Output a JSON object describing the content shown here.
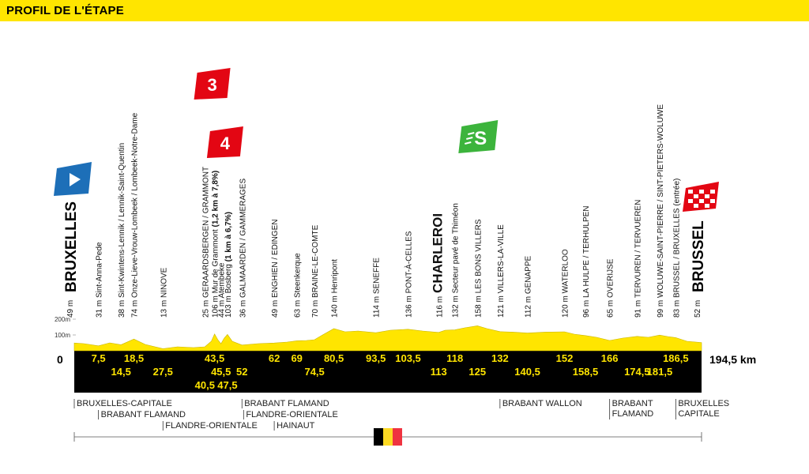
{
  "header": {
    "title": "PROFIL DE L'ÉTAPE"
  },
  "colors": {
    "yellow": "#ffe500",
    "black": "#000000",
    "blue": "#1d6fb8",
    "red": "#e30613",
    "green": "#3cb43c"
  },
  "chart_data": {
    "type": "area",
    "total_distance": "194,5 km",
    "start_km_label": "0",
    "altitude_axis": [
      "200m",
      "100m"
    ],
    "start": {
      "name": "BRUXELLES",
      "km": 0,
      "alt": 49
    },
    "finish": {
      "name": "BRUSSEL",
      "km": 194.5,
      "alt": 52
    },
    "climbs": [
      {
        "category": "3",
        "km": 43.5
      },
      {
        "category": "4",
        "km": 47.5
      }
    ],
    "sprint": {
      "symbol": "S",
      "km": 125
    },
    "waypoints": [
      {
        "km": 7.5,
        "label_km": "7,5",
        "row": 0,
        "text": "31 m Sint-Anna-Pede"
      },
      {
        "km": 14.5,
        "label_km": "14,5",
        "row": 1,
        "text": "38 m Sint-Kwintens-Lennik / Lennik-Saint-Quentin"
      },
      {
        "km": 18.5,
        "label_km": "18,5",
        "row": 0,
        "text": "74 m Onze-Lieve-Vrouw-Lombeek / Lombeek-Notre-Dame"
      },
      {
        "km": 27.5,
        "label_km": "27,5",
        "row": 1,
        "text": "13 m NINOVE"
      },
      {
        "km": 40.5,
        "label_km": "40,5",
        "row": 2,
        "text": "25 m GERAARDSBERGEN / GRAMMONT"
      },
      {
        "km": 43.5,
        "label_km": "43,5",
        "row": 0,
        "text": "106 m Mur de Grammont",
        "bold": "(1,2 km à 7,8%)"
      },
      {
        "km": 45.5,
        "label_km": "45,5",
        "row": 1,
        "text": "44 m Atembeke"
      },
      {
        "km": 47.5,
        "label_km": "47,5",
        "row": 2,
        "text": "103 m Bosberg",
        "bold": "(1 km à 6,7%)"
      },
      {
        "km": 52,
        "label_km": "52",
        "row": 1,
        "text": "36 m GALMAARDEN / GAMMERAGES"
      },
      {
        "km": 62,
        "label_km": "62",
        "row": 0,
        "text": "49 m ENGHIEN / EDINGEN"
      },
      {
        "km": 69,
        "label_km": "69",
        "row": 0,
        "text": "63 m Steenkerque"
      },
      {
        "km": 74.5,
        "label_km": "74,5",
        "row": 1,
        "text": "70 m BRAINE-LE-COMTE"
      },
      {
        "km": 80.5,
        "label_km": "80,5",
        "row": 0,
        "text": "140 m Henripont"
      },
      {
        "km": 93.5,
        "label_km": "93,5",
        "row": 0,
        "text": "114 m SENEFFE"
      },
      {
        "km": 103.5,
        "label_km": "103,5",
        "row": 0,
        "text": "136 m PONT-À-CELLES"
      },
      {
        "km": 113,
        "label_km": "113",
        "row": 1,
        "text": "116 m",
        "city": "CHARLEROI"
      },
      {
        "km": 118,
        "label_km": "118",
        "row": 0,
        "text": "132 m Secteur pavé de Thiméon"
      },
      {
        "km": 125,
        "label_km": "125",
        "row": 1,
        "text": "158 m LES BONS VILLERS"
      },
      {
        "km": 132,
        "label_km": "132",
        "row": 0,
        "text": "121 m VILLERS-LA-VILLE"
      },
      {
        "km": 140.5,
        "label_km": "140,5",
        "row": 1,
        "text": "112 m GENAPPE"
      },
      {
        "km": 152,
        "label_km": "152",
        "row": 0,
        "text": "120 m WATERLOO"
      },
      {
        "km": 158.5,
        "label_km": "158,5",
        "row": 1,
        "text": "96 m LA HULPE / TERHULPEN"
      },
      {
        "km": 166,
        "label_km": "166",
        "row": 0,
        "text": "65 m OVERIJSE"
      },
      {
        "km": 174.5,
        "label_km": "174,5",
        "row": 1,
        "text": "91 m TERVUREN / TERVUEREN"
      },
      {
        "km": 181.5,
        "label_km": "181,5",
        "row": 1,
        "text": "99 m WOLUWE-SAINT-PIERRE / SINT-PIETERS-WOLUWE"
      },
      {
        "km": 186.5,
        "label_km": "186,5",
        "row": 0,
        "text": "83 m BRUSSEL / BRUXELLES (entrée)"
      }
    ],
    "profile": [
      [
        0,
        49
      ],
      [
        3,
        45
      ],
      [
        7.5,
        31
      ],
      [
        11,
        50
      ],
      [
        14.5,
        38
      ],
      [
        18.5,
        74
      ],
      [
        22,
        40
      ],
      [
        27.5,
        13
      ],
      [
        32,
        25
      ],
      [
        37,
        20
      ],
      [
        40.5,
        25
      ],
      [
        42.5,
        60
      ],
      [
        43.5,
        106
      ],
      [
        44.5,
        70
      ],
      [
        45.5,
        44
      ],
      [
        46.5,
        80
      ],
      [
        47.5,
        103
      ],
      [
        49,
        60
      ],
      [
        52,
        36
      ],
      [
        57,
        45
      ],
      [
        62,
        49
      ],
      [
        66,
        55
      ],
      [
        69,
        63
      ],
      [
        72,
        65
      ],
      [
        74.5,
        70
      ],
      [
        77,
        100
      ],
      [
        80.5,
        140
      ],
      [
        84,
        120
      ],
      [
        88,
        125
      ],
      [
        93.5,
        114
      ],
      [
        98,
        130
      ],
      [
        103.5,
        136
      ],
      [
        108,
        125
      ],
      [
        113,
        116
      ],
      [
        115,
        130
      ],
      [
        118,
        132
      ],
      [
        121,
        145
      ],
      [
        125,
        158
      ],
      [
        128,
        140
      ],
      [
        132,
        121
      ],
      [
        136,
        118
      ],
      [
        140.5,
        112
      ],
      [
        146,
        118
      ],
      [
        152,
        120
      ],
      [
        155,
        105
      ],
      [
        158.5,
        96
      ],
      [
        162,
        85
      ],
      [
        166,
        65
      ],
      [
        170,
        80
      ],
      [
        174.5,
        91
      ],
      [
        178,
        85
      ],
      [
        181.5,
        99
      ],
      [
        184,
        90
      ],
      [
        186.5,
        83
      ],
      [
        190,
        60
      ],
      [
        194.5,
        52
      ]
    ],
    "regions": [
      {
        "lines": [
          "BRUXELLES-CAPITALE"
        ],
        "km": 0,
        "row": 0
      },
      {
        "lines": [
          "BRABANT FLAMAND"
        ],
        "km": 7.5,
        "row": 1
      },
      {
        "lines": [
          "FLANDRE-ORIENTALE"
        ],
        "km": 27.5,
        "row": 2
      },
      {
        "lines": [
          "BRABANT FLAMAND"
        ],
        "km": 52,
        "row": 0
      },
      {
        "lines": [
          "FLANDRE-ORIENTALE"
        ],
        "km": 52.5,
        "row": 1
      },
      {
        "lines": [
          "HAINAUT"
        ],
        "km": 62,
        "row": 2
      },
      {
        "lines": [
          "BRABANT WALLON"
        ],
        "km": 132,
        "row": 0
      },
      {
        "lines": [
          "BRABANT",
          "FLAMAND"
        ],
        "km": 166,
        "row": 0
      },
      {
        "lines": [
          "BRUXELLES",
          "CAPITALE"
        ],
        "km": 186.5,
        "row": 0
      }
    ]
  }
}
